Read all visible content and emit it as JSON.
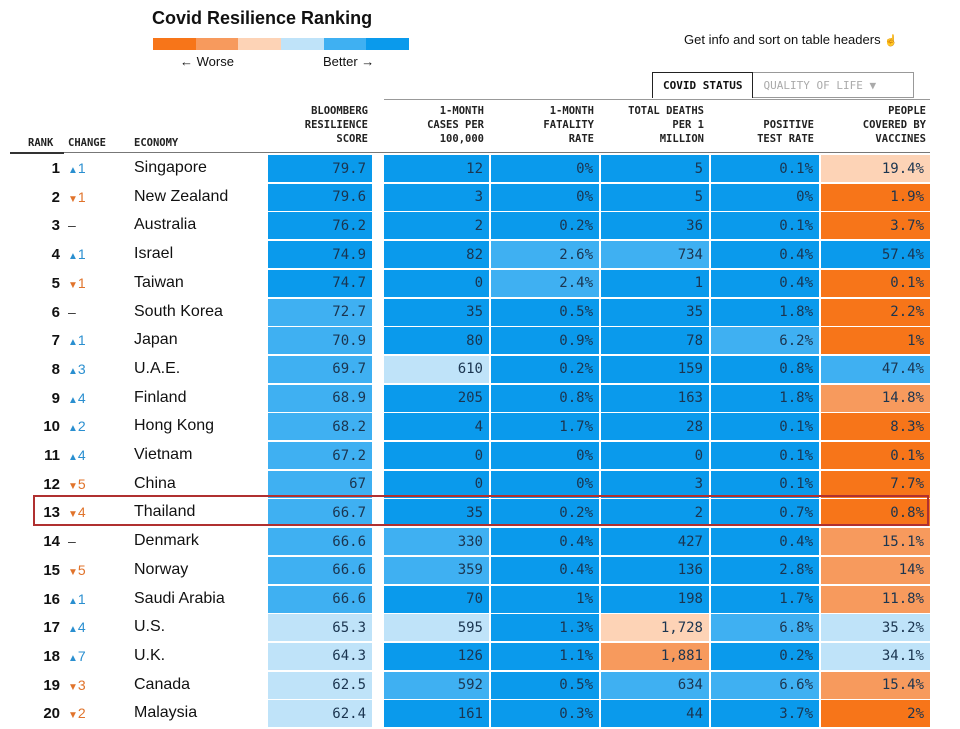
{
  "header": {
    "title": "Covid Resilience Ranking",
    "legend_worse": "← Worse",
    "legend_better": "Better →",
    "legend_colors": [
      "#f77519",
      "#f79a5d",
      "#fdd3b6",
      "#bfe3f9",
      "#3fb0f2",
      "#0a9aec"
    ],
    "info_text": "Get info and sort on table headers",
    "info_icon": "pointer-hand-icon"
  },
  "tabs": {
    "active": "COVID STATUS",
    "inactive": "QUALITY OF LIFE ▼"
  },
  "columns": {
    "rank": "RANK",
    "change": "CHANGE",
    "economy": "ECONOMY",
    "score": [
      "BLOOMBERG",
      "RESILIENCE",
      "SCORE"
    ],
    "cases": [
      "1-MONTH",
      "CASES PER",
      "100,000"
    ],
    "fatality": [
      "1-MONTH",
      "FATALITY",
      "RATE"
    ],
    "deaths": [
      "TOTAL DEATHS",
      "PER 1",
      "MILLION"
    ],
    "positive": [
      "POSITIVE",
      "TEST RATE"
    ],
    "vaccines": [
      "PEOPLE",
      "COVERED BY",
      "VACCINES"
    ]
  },
  "highlighted_economy": "Thailand",
  "rows": [
    {
      "rank": "1",
      "dir": "up",
      "chg": "1",
      "economy": "Singapore",
      "score": "79.7",
      "cases": "12",
      "fatality": "0%",
      "deaths": "5",
      "positive": "0.1%",
      "vaccines": "19.4%",
      "colors": [
        "b1",
        "b1",
        "b1",
        "b1",
        "b1",
        "o3"
      ]
    },
    {
      "rank": "2",
      "dir": "down",
      "chg": "1",
      "economy": "New Zealand",
      "score": "79.6",
      "cases": "3",
      "fatality": "0%",
      "deaths": "5",
      "positive": "0%",
      "vaccines": "1.9%",
      "colors": [
        "b1",
        "b1",
        "b1",
        "b1",
        "b1",
        "o1"
      ]
    },
    {
      "rank": "3",
      "dir": "same",
      "chg": "–",
      "economy": "Australia",
      "score": "76.2",
      "cases": "2",
      "fatality": "0.2%",
      "deaths": "36",
      "positive": "0.1%",
      "vaccines": "3.7%",
      "colors": [
        "b1",
        "b1",
        "b1",
        "b1",
        "b1",
        "o1"
      ]
    },
    {
      "rank": "4",
      "dir": "up",
      "chg": "1",
      "economy": "Israel",
      "score": "74.9",
      "cases": "82",
      "fatality": "2.6%",
      "deaths": "734",
      "positive": "0.4%",
      "vaccines": "57.4%",
      "colors": [
        "b1",
        "b1",
        "b2",
        "b2",
        "b1",
        "b1"
      ]
    },
    {
      "rank": "5",
      "dir": "down",
      "chg": "1",
      "economy": "Taiwan",
      "score": "74.7",
      "cases": "0",
      "fatality": "2.4%",
      "deaths": "1",
      "positive": "0.4%",
      "vaccines": "0.1%",
      "colors": [
        "b1",
        "b1",
        "b2",
        "b1",
        "b1",
        "o1"
      ]
    },
    {
      "rank": "6",
      "dir": "same",
      "chg": "–",
      "economy": "South Korea",
      "score": "72.7",
      "cases": "35",
      "fatality": "0.5%",
      "deaths": "35",
      "positive": "1.8%",
      "vaccines": "2.2%",
      "colors": [
        "b2",
        "b1",
        "b1",
        "b1",
        "b1",
        "o1"
      ]
    },
    {
      "rank": "7",
      "dir": "up",
      "chg": "1",
      "economy": "Japan",
      "score": "70.9",
      "cases": "80",
      "fatality": "0.9%",
      "deaths": "78",
      "positive": "6.2%",
      "vaccines": "1%",
      "colors": [
        "b2",
        "b1",
        "b1",
        "b1",
        "b2",
        "o1"
      ]
    },
    {
      "rank": "8",
      "dir": "up",
      "chg": "3",
      "economy": "U.A.E.",
      "score": "69.7",
      "cases": "610",
      "fatality": "0.2%",
      "deaths": "159",
      "positive": "0.8%",
      "vaccines": "47.4%",
      "colors": [
        "b2",
        "b3",
        "b1",
        "b1",
        "b1",
        "b2"
      ]
    },
    {
      "rank": "9",
      "dir": "up",
      "chg": "4",
      "economy": "Finland",
      "score": "68.9",
      "cases": "205",
      "fatality": "0.8%",
      "deaths": "163",
      "positive": "1.8%",
      "vaccines": "14.8%",
      "colors": [
        "b2",
        "b1",
        "b1",
        "b1",
        "b1",
        "o2"
      ]
    },
    {
      "rank": "10",
      "dir": "up",
      "chg": "2",
      "economy": "Hong Kong",
      "score": "68.2",
      "cases": "4",
      "fatality": "1.7%",
      "deaths": "28",
      "positive": "0.1%",
      "vaccines": "8.3%",
      "colors": [
        "b2",
        "b1",
        "b1",
        "b1",
        "b1",
        "o1"
      ]
    },
    {
      "rank": "11",
      "dir": "up",
      "chg": "4",
      "economy": "Vietnam",
      "score": "67.2",
      "cases": "0",
      "fatality": "0%",
      "deaths": "0",
      "positive": "0.1%",
      "vaccines": "0.1%",
      "colors": [
        "b2",
        "b1",
        "b1",
        "b1",
        "b1",
        "o1"
      ]
    },
    {
      "rank": "12",
      "dir": "down",
      "chg": "5",
      "economy": "China",
      "score": "67",
      "cases": "0",
      "fatality": "0%",
      "deaths": "3",
      "positive": "0.1%",
      "vaccines": "7.7%",
      "colors": [
        "b2",
        "b1",
        "b1",
        "b1",
        "b1",
        "o1"
      ]
    },
    {
      "rank": "13",
      "dir": "down",
      "chg": "4",
      "economy": "Thailand",
      "score": "66.7",
      "cases": "35",
      "fatality": "0.2%",
      "deaths": "2",
      "positive": "0.7%",
      "vaccines": "0.8%",
      "colors": [
        "b2",
        "b1",
        "b1",
        "b1",
        "b1",
        "o1"
      ]
    },
    {
      "rank": "14",
      "dir": "same",
      "chg": "–",
      "economy": "Denmark",
      "score": "66.6",
      "cases": "330",
      "fatality": "0.4%",
      "deaths": "427",
      "positive": "0.4%",
      "vaccines": "15.1%",
      "colors": [
        "b2",
        "b2",
        "b1",
        "b1",
        "b1",
        "o2"
      ]
    },
    {
      "rank": "15",
      "dir": "down",
      "chg": "5",
      "economy": "Norway",
      "score": "66.6",
      "cases": "359",
      "fatality": "0.4%",
      "deaths": "136",
      "positive": "2.8%",
      "vaccines": "14%",
      "colors": [
        "b2",
        "b2",
        "b1",
        "b1",
        "b1",
        "o2"
      ]
    },
    {
      "rank": "16",
      "dir": "up",
      "chg": "1",
      "economy": "Saudi Arabia",
      "score": "66.6",
      "cases": "70",
      "fatality": "1%",
      "deaths": "198",
      "positive": "1.7%",
      "vaccines": "11.8%",
      "colors": [
        "b2",
        "b1",
        "b1",
        "b1",
        "b1",
        "o2"
      ]
    },
    {
      "rank": "17",
      "dir": "up",
      "chg": "4",
      "economy": "U.S.",
      "score": "65.3",
      "cases": "595",
      "fatality": "1.3%",
      "deaths": "1,728",
      "positive": "6.8%",
      "vaccines": "35.2%",
      "colors": [
        "b3",
        "b3",
        "b1",
        "o3",
        "b2",
        "b3"
      ]
    },
    {
      "rank": "18",
      "dir": "up",
      "chg": "7",
      "economy": "U.K.",
      "score": "64.3",
      "cases": "126",
      "fatality": "1.1%",
      "deaths": "1,881",
      "positive": "0.2%",
      "vaccines": "34.1%",
      "colors": [
        "b3",
        "b1",
        "b1",
        "o2",
        "b1",
        "b3"
      ]
    },
    {
      "rank": "19",
      "dir": "down",
      "chg": "3",
      "economy": "Canada",
      "score": "62.5",
      "cases": "592",
      "fatality": "0.5%",
      "deaths": "634",
      "positive": "6.6%",
      "vaccines": "15.4%",
      "colors": [
        "b3",
        "b2",
        "b1",
        "b2",
        "b2",
        "o2"
      ]
    },
    {
      "rank": "20",
      "dir": "down",
      "chg": "2",
      "economy": "Malaysia",
      "score": "62.4",
      "cases": "161",
      "fatality": "0.3%",
      "deaths": "44",
      "positive": "3.7%",
      "vaccines": "2%",
      "colors": [
        "b3",
        "b1",
        "b1",
        "b1",
        "b1",
        "o1"
      ]
    }
  ]
}
